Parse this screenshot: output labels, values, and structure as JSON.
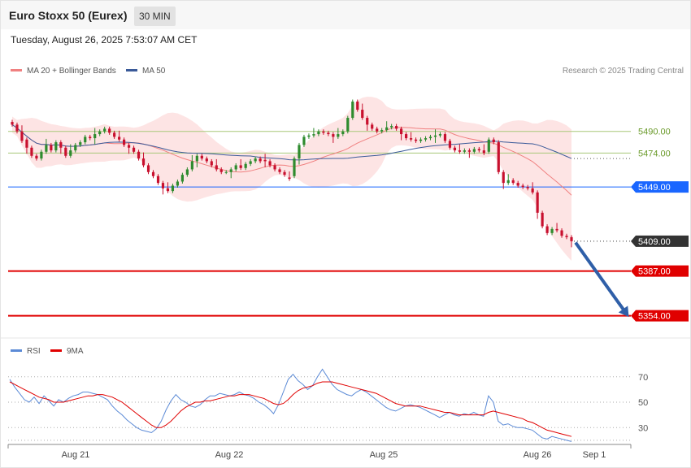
{
  "header": {
    "title": "Euro Stoxx 50 (Eurex)",
    "timeframe": "30 MIN"
  },
  "timestamp": "Tuesday, August 26, 2025 7:53:07 AM CET",
  "legend": {
    "ma20": "MA 20 + Bollinger Bands",
    "ma50": "MA 50",
    "credit": "Research © 2025 Trading Central",
    "rsi": "RSI",
    "rsi_ma": "9MA"
  },
  "colors": {
    "up": "#2e8b2e",
    "down": "#c8102e",
    "ma20": "#f08080",
    "ma50": "#3a5a99",
    "bb_fill": "#fde4e4",
    "pivot": "#1a66ff",
    "support": "#e00000",
    "resistance": "#a8c878",
    "current": "#333333",
    "rsi": "#5b8ad6",
    "rsi_ma": "#e00000"
  },
  "chart_data": [
    {
      "type": "candlestick",
      "title": "Euro Stoxx 50 (Eurex)",
      "timeframe": "30 MIN",
      "ylim": [
        5340,
        5530
      ],
      "x_labels": [
        "Aug 21",
        "Aug 22",
        "Aug 25",
        "Aug 26",
        "Sep 1"
      ],
      "levels": [
        {
          "label": "5490.00",
          "value": 5490,
          "role": "resistance"
        },
        {
          "label": "5474.00",
          "value": 5474,
          "role": "resistance"
        },
        {
          "label": "5449.00",
          "value": 5449,
          "role": "pivot"
        },
        {
          "label": "5409.00",
          "value": 5409,
          "role": "current"
        },
        {
          "label": "5387.00",
          "value": 5387,
          "role": "support"
        },
        {
          "label": "5354.00",
          "value": 5354,
          "role": "support"
        }
      ],
      "closes": [
        5495,
        5490,
        5483,
        5478,
        5472,
        5470,
        5475,
        5480,
        5476,
        5482,
        5478,
        5472,
        5476,
        5480,
        5482,
        5486,
        5485,
        5488,
        5490,
        5492,
        5489,
        5486,
        5484,
        5480,
        5478,
        5475,
        5470,
        5465,
        5460,
        5457,
        5452,
        5448,
        5446,
        5450,
        5453,
        5458,
        5462,
        5468,
        5472,
        5470,
        5468,
        5465,
        5462,
        5460,
        5460,
        5462,
        5465,
        5463,
        5466,
        5468,
        5470,
        5468,
        5468,
        5465,
        5462,
        5460,
        5458,
        5455,
        5470,
        5480,
        5486,
        5487,
        5488,
        5490,
        5489,
        5488,
        5486,
        5488,
        5490,
        5500,
        5512,
        5506,
        5500,
        5495,
        5492,
        5490,
        5491,
        5493,
        5494,
        5492,
        5488,
        5485,
        5484,
        5483,
        5484,
        5485,
        5486,
        5487,
        5488,
        5483,
        5478,
        5476,
        5475,
        5476,
        5475,
        5477,
        5476,
        5474,
        5484,
        5482,
        5460,
        5452,
        5454,
        5452,
        5450,
        5449,
        5448,
        5445,
        5430,
        5420,
        5415,
        5418,
        5417,
        5413,
        5412,
        5409
      ],
      "opens": [
        5497,
        5495,
        5490,
        5484,
        5478,
        5472,
        5470,
        5475,
        5480,
        5476,
        5482,
        5478,
        5472,
        5476,
        5480,
        5482,
        5486,
        5485,
        5488,
        5490,
        5492,
        5489,
        5486,
        5484,
        5480,
        5478,
        5475,
        5470,
        5465,
        5460,
        5457,
        5452,
        5448,
        5446,
        5450,
        5453,
        5458,
        5462,
        5468,
        5472,
        5470,
        5468,
        5465,
        5462,
        5460,
        5460,
        5462,
        5465,
        5463,
        5466,
        5468,
        5470,
        5469,
        5468,
        5465,
        5462,
        5460,
        5456,
        5457,
        5470,
        5480,
        5486,
        5487,
        5488,
        5490,
        5489,
        5488,
        5486,
        5488,
        5490,
        5500,
        5512,
        5506,
        5500,
        5495,
        5492,
        5490,
        5491,
        5493,
        5494,
        5492,
        5488,
        5485,
        5484,
        5483,
        5484,
        5485,
        5486,
        5487,
        5488,
        5483,
        5478,
        5476,
        5475,
        5476,
        5475,
        5477,
        5476,
        5475,
        5484,
        5482,
        5460,
        5452,
        5454,
        5452,
        5450,
        5449,
        5448,
        5445,
        5430,
        5420,
        5415,
        5418,
        5417,
        5413,
        5412
      ]
    },
    {
      "type": "line",
      "series": [
        {
          "name": "RSI"
        },
        {
          "name": "9MA"
        }
      ],
      "yticks": [
        70,
        50,
        30
      ],
      "ylim": [
        18,
        82
      ],
      "rsi": [
        68,
        62,
        57,
        52,
        50,
        54,
        49,
        55,
        51,
        47,
        52,
        50,
        53,
        55,
        56,
        58,
        58,
        57,
        56,
        54,
        52,
        47,
        43,
        40,
        36,
        33,
        30,
        28,
        27,
        26,
        29,
        35,
        44,
        51,
        56,
        52,
        50,
        47,
        46,
        48,
        52,
        55,
        55,
        57,
        56,
        55,
        56,
        58,
        56,
        55,
        53,
        50,
        48,
        45,
        41,
        48,
        58,
        68,
        72,
        67,
        64,
        60,
        63,
        70,
        76,
        70,
        64,
        60,
        58,
        56,
        55,
        58,
        60,
        58,
        55,
        52,
        49,
        46,
        44,
        43,
        45,
        47,
        48,
        47,
        46,
        44,
        42,
        40,
        38,
        40,
        42,
        40,
        39,
        41,
        40,
        42,
        40,
        39,
        55,
        50,
        35,
        32,
        33,
        31,
        30,
        30,
        29,
        28,
        25,
        22,
        21,
        23,
        22,
        21,
        20,
        19
      ],
      "rsi_ma": [
        66,
        64,
        62,
        60,
        58,
        56,
        54,
        53,
        52,
        50,
        50,
        50,
        51,
        52,
        53,
        54,
        55,
        55,
        56,
        56,
        55,
        54,
        52,
        50,
        47,
        44,
        41,
        38,
        35,
        32,
        30,
        30,
        32,
        35,
        39,
        43,
        46,
        48,
        50,
        50,
        51,
        51,
        52,
        53,
        54,
        55,
        55,
        56,
        56,
        56,
        55,
        54,
        53,
        51,
        49,
        48,
        49,
        52,
        56,
        59,
        61,
        62,
        63,
        65,
        66,
        66,
        66,
        65,
        64,
        63,
        62,
        61,
        60,
        59,
        58,
        57,
        55,
        53,
        51,
        49,
        48,
        47,
        47,
        47,
        47,
        46,
        45,
        44,
        43,
        42,
        42,
        41,
        40,
        40,
        40,
        40,
        40,
        40,
        42,
        43,
        42,
        41,
        40,
        39,
        38,
        37,
        35,
        34,
        32,
        30,
        28,
        27,
        26,
        25,
        24,
        23
      ]
    }
  ]
}
